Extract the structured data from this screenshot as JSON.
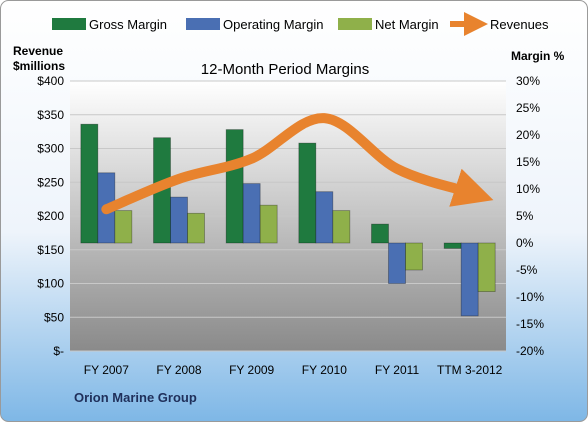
{
  "chart_data": {
    "type": "bar",
    "title": "12-Month Period Margins",
    "left_axis_label_line1": "Revenue",
    "left_axis_label_line2": "$millions",
    "right_axis_label": "Margin %",
    "company": "Orion Marine Group",
    "categories": [
      "FY 2007",
      "FY 2008",
      "FY 2009",
      "FY 2010",
      "FY 2011",
      "TTM 3-2012"
    ],
    "left_ticks": [
      "$400",
      "$350",
      "$300",
      "$250",
      "$200",
      "$150",
      "$100",
      "$50",
      "$-"
    ],
    "right_ticks": [
      "30%",
      "25%",
      "20%",
      "15%",
      "10%",
      "5%",
      "0%",
      "-5%",
      "-10%",
      "-15%",
      "-20%"
    ],
    "ylim_left": [
      0,
      400
    ],
    "ylim_right": [
      -20,
      30
    ],
    "series": [
      {
        "name": "Gross Margin",
        "color": "#1f7a3f",
        "values": [
          22,
          19.5,
          21,
          18.5,
          3.5,
          -1
        ]
      },
      {
        "name": "Operating Margin",
        "color": "#4a6fb3",
        "values": [
          13,
          8.5,
          11,
          9.5,
          -7.5,
          -13.5
        ]
      },
      {
        "name": "Net Margin",
        "color": "#8fb04a",
        "values": [
          6,
          5.5,
          7,
          6,
          -5,
          -9
        ]
      }
    ],
    "revenues": {
      "name": "Revenues",
      "color": "#e8832e",
      "values": [
        210,
        255,
        285,
        345,
        270,
        235
      ]
    },
    "legend_position": "top",
    "grid": true
  }
}
